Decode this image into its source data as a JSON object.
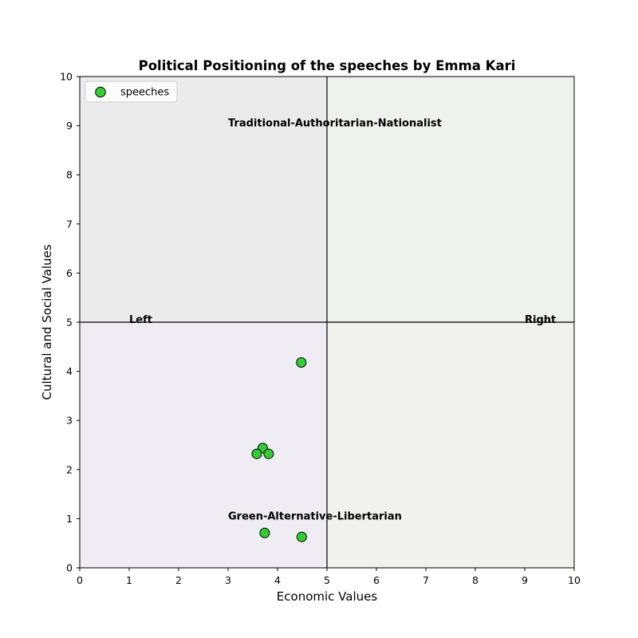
{
  "chart_data": {
    "type": "scatter",
    "title": "Political Positioning of the speeches by Emma Kari",
    "xlabel": "Economic Values",
    "ylabel": "Cultural and Social Values",
    "xlim": [
      0,
      10
    ],
    "ylim": [
      0,
      10
    ],
    "xticks": [
      "0",
      "1",
      "2",
      "3",
      "4",
      "5",
      "6",
      "7",
      "8",
      "9",
      "10"
    ],
    "yticks": [
      "0",
      "1",
      "2",
      "3",
      "4",
      "5",
      "6",
      "7",
      "8",
      "9",
      "10"
    ],
    "grid": false,
    "legend_position": "top-left",
    "center_lines": {
      "x": 5,
      "y": 5
    },
    "quadrants": [
      {
        "name": "top-left",
        "x": [
          0,
          5
        ],
        "y": [
          5,
          10
        ],
        "color": "#ebebeb"
      },
      {
        "name": "top-right",
        "x": [
          5,
          10
        ],
        "y": [
          5,
          10
        ],
        "color": "#eff1ec"
      },
      {
        "name": "bottom-left",
        "x": [
          0,
          5
        ],
        "y": [
          0,
          5
        ],
        "color": "#efedf3"
      },
      {
        "name": "bottom-right",
        "x": [
          5,
          10
        ],
        "y": [
          0,
          5
        ],
        "color": "#f1f2ee"
      }
    ],
    "annotations": [
      {
        "text": "Traditional-Authoritarian-Nationalist",
        "x": 3.0,
        "y": 9.0
      },
      {
        "text": "Green-Alternative-Libertarian",
        "x": 3.0,
        "y": 1.0
      },
      {
        "text": "Left",
        "x": 1.0,
        "y": 5.0
      },
      {
        "text": "Right",
        "x": 9.0,
        "y": 5.0
      }
    ],
    "series": [
      {
        "name": "speeches",
        "color": "#33cc33",
        "edgecolor": "#000000",
        "points": [
          {
            "x": 4.48,
            "y": 4.18
          },
          {
            "x": 3.7,
            "y": 2.44
          },
          {
            "x": 3.58,
            "y": 2.32
          },
          {
            "x": 3.82,
            "y": 2.32
          },
          {
            "x": 3.74,
            "y": 0.71
          },
          {
            "x": 4.49,
            "y": 0.63
          }
        ]
      }
    ]
  }
}
